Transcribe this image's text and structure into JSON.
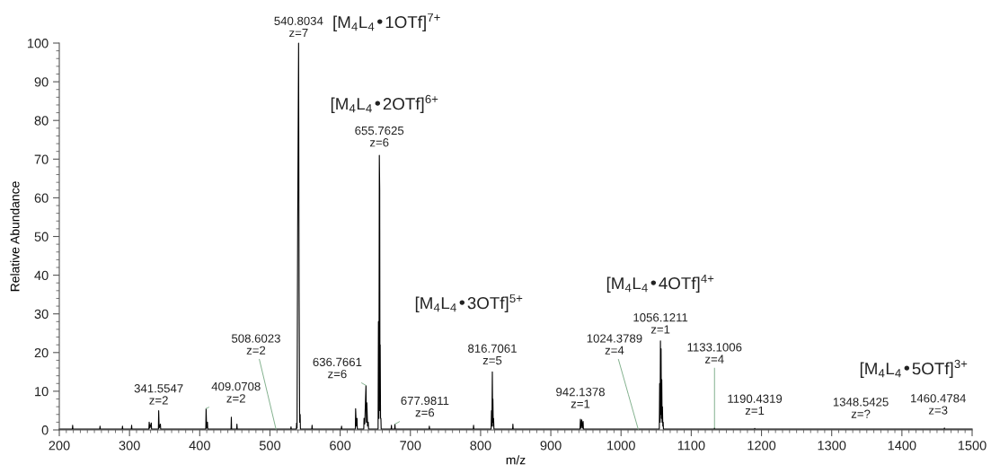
{
  "chart_data": {
    "type": "line",
    "xlabel": "m/z",
    "ylabel": "Relative Abundance",
    "xlim": [
      200,
      1500
    ],
    "xticks": [
      200,
      300,
      400,
      500,
      600,
      700,
      800,
      900,
      1000,
      1100,
      1200,
      1300,
      1400,
      1500
    ],
    "ylim": [
      0,
      100
    ],
    "yticks": [
      0,
      10,
      20,
      30,
      40,
      50,
      60,
      70,
      80,
      90,
      100
    ],
    "grid": false,
    "legend": false,
    "marker": "none",
    "line_style": "solid",
    "series": [
      {
        "color": "#000000",
        "x": [
          200,
          218.6,
          219,
          219.4,
          257.6,
          258,
          258.4,
          289.6,
          290,
          290.4,
          302.6,
          303,
          303.4,
          327.6,
          328,
          329,
          331,
          331.4,
          341.1,
          341.55,
          342.2,
          344,
          344.4,
          408.6,
          409.07,
          409.8,
          411,
          411.4,
          444.6,
          445,
          445.4,
          452.6,
          453,
          453.4,
          529.6,
          530,
          530.4,
          537.6,
          538,
          538.6,
          539.5,
          540.8,
          541.5,
          542.3,
          543,
          543.4,
          559.6,
          560,
          560.4,
          601.6,
          602,
          602.4,
          621.6,
          622,
          623,
          624,
          624.4,
          633.6,
          634,
          635,
          636.77,
          637.4,
          638,
          639,
          640,
          640.4,
          654,
          654.5,
          655.2,
          655.76,
          656.3,
          656.7,
          657,
          657.5,
          658,
          658.4,
          672.6,
          673,
          673.4,
          677.6,
          677.98,
          678.4,
          726.6,
          727,
          727.4,
          789.6,
          790,
          790.4,
          815,
          815.5,
          816.1,
          816.71,
          817.2,
          817.5,
          818,
          818.5,
          819,
          845.6,
          846,
          846.4,
          941.6,
          942.14,
          943,
          944,
          945,
          946,
          946.4,
          1054.5,
          1055,
          1055.6,
          1056.12,
          1056.6,
          1057,
          1057.5,
          1058,
          1058.5,
          1059,
          1059.5,
          1060,
          1060.4,
          1132.7,
          1133.1,
          1133.5,
          1190,
          1190.4,
          1190.8,
          1460.1,
          1460.5,
          1460.9,
          1500
        ],
        "values": [
          0.2,
          0.2,
          1.2,
          0.2,
          0.2,
          1.0,
          0.2,
          0.2,
          1.0,
          0.2,
          0.2,
          1.2,
          0.2,
          0.2,
          2.0,
          0.5,
          1.8,
          0.2,
          0.2,
          5.0,
          0.5,
          1.5,
          0.2,
          0.2,
          5.5,
          0.5,
          2.0,
          0.2,
          0.2,
          3.3,
          0.2,
          0.2,
          1.5,
          0.2,
          0.2,
          0.8,
          0.2,
          0.2,
          1.8,
          0.5,
          53,
          100,
          36,
          2,
          4,
          0.2,
          0.2,
          1.2,
          0.2,
          0.2,
          1.0,
          0.2,
          0.2,
          5.5,
          1,
          3.0,
          0.2,
          0.2,
          3,
          1.5,
          11.5,
          2,
          7,
          1,
          2,
          0.2,
          0.2,
          28,
          3,
          71,
          62,
          5,
          22,
          3,
          3,
          0.2,
          0.2,
          1.2,
          0.2,
          0.2,
          1.5,
          0.2,
          0.2,
          1.0,
          0.2,
          0.2,
          1.2,
          0.2,
          0.2,
          5,
          1,
          15,
          2,
          8,
          1,
          3,
          0.2,
          0.2,
          1.5,
          0.2,
          0.2,
          2.8,
          0.5,
          2.6,
          0.5,
          2.2,
          0.2,
          0.2,
          12,
          2,
          23,
          4,
          21,
          3,
          13,
          2,
          6,
          1,
          2,
          0.2,
          0.2,
          0.5,
          0.2,
          0.2,
          0.4,
          0.2,
          0.2,
          0.5,
          0.2,
          0.2
        ]
      }
    ],
    "annotations": [
      {
        "text": "540.8034\nz=7",
        "x": 540.8,
        "y": 100
      },
      "[M$_{4}$L$_{4}$•1OTf]$^{7+}$",
      "[M$_{4}$L$_{4}$•2OTf]$^{6+}$",
      {
        "text": "655.7625\nz=6",
        "x": 655.76,
        "y": 71
      },
      {
        "text": "341.5547\nz=2",
        "x": 341.55,
        "y": 5.0
      },
      {
        "text": "409.0708\nz=2",
        "x": 409.07,
        "y": 5.5
      },
      {
        "text": "508.6023\nz=2",
        "x": 508.6,
        "y": 0.2
      },
      {
        "text": "636.7661\nz=6",
        "x": 636.77,
        "y": 11.5
      },
      {
        "text": "677.9811\nz=6",
        "x": 677.98,
        "y": 1.5
      },
      "[M$_{4}$L$_{4}$•3OTf]$^{5+}$",
      {
        "text": "816.7061\nz=5",
        "x": 816.71,
        "y": 15
      },
      {
        "text": "942.1378\nz=1",
        "x": 942.14,
        "y": 2.8
      },
      {
        "text": "1024.3789\nz=4",
        "x": 1024.4,
        "y": 0.2
      },
      "[M$_{4}$L$_{4}$•4OTf]$^{4+}$",
      {
        "text": "1056.1211\nz=1",
        "x": 1056.12,
        "y": 23
      },
      {
        "text": "1133.1006\nz=4",
        "x": 1133.1,
        "y": 0.5
      },
      {
        "text": "1190.4319\nz=1",
        "x": 1190.4,
        "y": 0.4
      },
      {
        "text": "1348.5425\nz=?",
        "x": 1348.5,
        "y": 0.2
      },
      "[M$_{4}$L$_{4}$•5OTf]$^{3+}$",
      {
        "text": "1460.4784\nz=3",
        "x": 1460.5,
        "y": 0.5
      }
    ]
  }
}
